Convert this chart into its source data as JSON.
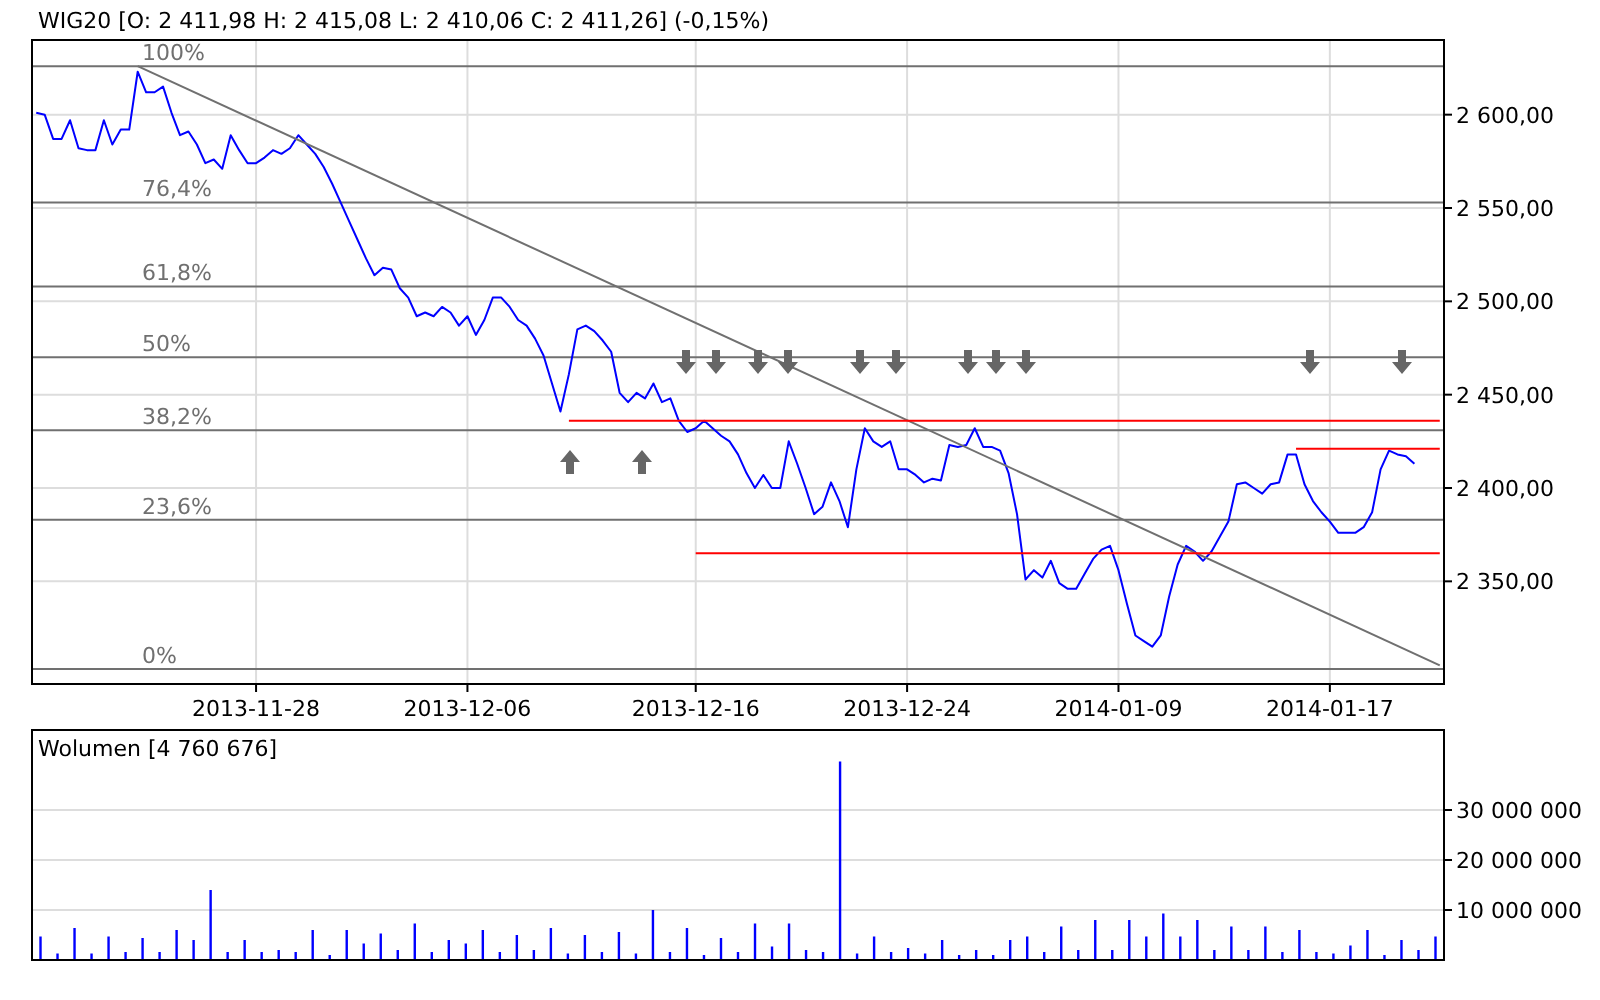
{
  "chart_data": [
    {
      "type": "line",
      "title": "WIG20 [O: 2 411,98 H: 2 415,08 L: 2 410,06 C: 2 411,26] (-0,15%)",
      "categories": [
        null,
        null,
        null,
        null,
        null,
        null,
        null,
        null,
        null,
        null,
        null,
        null,
        null,
        null,
        null,
        null,
        null,
        null,
        null,
        null,
        null,
        null,
        null,
        null,
        null,
        null,
        "2013-11-28",
        null,
        null,
        null,
        null,
        null,
        null,
        null,
        null,
        null,
        null,
        null,
        null,
        null,
        null,
        null,
        null,
        null,
        null,
        null,
        null,
        null,
        null,
        null,
        null,
        "2013-12-06",
        null,
        null,
        null,
        null,
        null,
        null,
        null,
        null,
        null,
        null,
        null,
        null,
        null,
        null,
        null,
        null,
        null,
        null,
        null,
        null,
        null,
        null,
        null,
        null,
        null,
        null,
        "2013-12-16",
        null,
        null,
        null,
        null,
        null,
        null,
        null,
        null,
        null,
        null,
        null,
        null,
        null,
        null,
        null,
        null,
        null,
        null,
        null,
        null,
        null,
        null,
        null,
        null,
        "2013-12-24",
        null,
        null,
        null,
        null,
        null,
        null,
        null,
        null,
        null,
        null,
        null,
        null,
        null,
        null,
        null,
        null,
        null,
        null,
        null,
        null,
        null,
        null,
        null,
        null,
        "2014-01-09",
        null,
        null,
        null,
        null,
        null,
        null,
        null,
        null,
        null,
        null,
        null,
        null,
        null,
        null,
        null,
        null,
        null,
        null,
        null,
        null,
        null,
        null,
        null,
        null,
        "2014-01-17",
        null,
        null,
        null,
        null,
        null,
        null,
        null,
        null,
        null,
        null,
        null,
        null,
        null
      ],
      "ylim": [
        2295,
        2640
      ],
      "yticks": [
        {
          "value": 2350,
          "label": "2 350,00"
        },
        {
          "value": 2400,
          "label": "2 400,00"
        },
        {
          "value": 2450,
          "label": "2 450,00"
        },
        {
          "value": 2500,
          "label": "2 500,00"
        },
        {
          "value": 2550,
          "label": "2 550,00"
        },
        {
          "value": 2600,
          "label": "2 600,00"
        }
      ],
      "grid": true,
      "marker": "none",
      "line_style": "solid",
      "ref_lines": [
        {
          "axis": "y",
          "value": 2626,
          "color": "#707070"
        },
        {
          "axis": "y",
          "value": 2553,
          "color": "#707070"
        },
        {
          "axis": "y",
          "value": 2508,
          "color": "#707070"
        },
        {
          "axis": "y",
          "value": 2470,
          "color": "#707070"
        },
        {
          "axis": "y",
          "value": 2431,
          "color": "#707070"
        },
        {
          "axis": "y",
          "value": 2383,
          "color": "#707070"
        },
        {
          "axis": "y",
          "value": 2303,
          "color": "#707070"
        }
      ],
      "annotations": [
        {
          "text": "100%",
          "y": 2626
        },
        {
          "text": "76,4%",
          "y": 2553
        },
        {
          "text": "61,8%",
          "y": 2508
        },
        {
          "text": "50%",
          "y": 2470
        },
        {
          "text": "38,2%",
          "y": 2431
        },
        {
          "text": "23,6%",
          "y": 2383
        },
        {
          "text": "0%",
          "y": 2303
        }
      ],
      "series": [
        {
          "color": "#0000ff",
          "values": [
            2601,
            2600,
            2587,
            2587,
            2597,
            2582,
            2581,
            2581,
            2597,
            2584,
            2592,
            2592,
            2623,
            2612,
            2612,
            2615,
            2601,
            2589,
            2591,
            2584,
            2574,
            2576,
            2571,
            2589,
            2581,
            2574,
            2574,
            2577,
            2581,
            2579,
            2582,
            2589,
            2584,
            2579,
            2572,
            2563,
            2553,
            2543,
            2533,
            2523,
            2514,
            2518,
            2517,
            2507,
            2502,
            2492,
            2494,
            2492,
            2497,
            2494,
            2487,
            2492,
            2482,
            2490,
            2502,
            2502,
            2497,
            2490,
            2487,
            2480,
            2471,
            2456,
            2441,
            2461,
            2485,
            2487,
            2484,
            2479,
            2473,
            2451,
            2446,
            2451,
            2448,
            2456,
            2446,
            2448,
            2436,
            2430,
            2432,
            2436,
            2432,
            2428,
            2425,
            2418,
            2408,
            2400,
            2407,
            2400,
            2400,
            2425,
            2413,
            2400,
            2386,
            2390,
            2403,
            2393,
            2379,
            2410,
            2432,
            2425,
            2422,
            2425,
            2410,
            2410,
            2407,
            2403,
            2405,
            2404,
            2423,
            2422,
            2423,
            2432,
            2422,
            2422,
            2420,
            2408,
            2386,
            2351,
            2356,
            2352,
            2361,
            2349,
            2346,
            2346,
            2354,
            2362,
            2367,
            2369,
            2356,
            2338,
            2321,
            2318,
            2315,
            2321,
            2342,
            2359,
            2369,
            2366,
            2361,
            2366,
            2374,
            2382,
            2402,
            2403,
            2400,
            2397,
            2402,
            2403,
            2418,
            2418,
            2402,
            2393,
            2387,
            2382,
            2376,
            2376,
            2376,
            2379,
            2387,
            2410,
            2420,
            2418,
            2417,
            2413,
            null,
            null,
            null
          ]
        },
        {
          "color": "#707070",
          "values": [
            null,
            null,
            null,
            null,
            null,
            null,
            null,
            null,
            null,
            null,
            null,
            null,
            2626,
            null,
            null,
            null,
            null,
            null,
            null,
            null,
            null,
            null,
            null,
            null,
            null,
            null,
            null,
            null,
            null,
            null,
            null,
            null,
            null,
            null,
            null,
            null,
            null,
            null,
            null,
            null,
            null,
            null,
            null,
            null,
            null,
            null,
            null,
            null,
            null,
            null,
            null,
            null,
            null,
            null,
            null,
            null,
            null,
            null,
            null,
            null,
            null,
            null,
            null,
            null,
            null,
            null,
            null,
            null,
            null,
            null,
            null,
            null,
            null,
            null,
            null,
            null,
            null,
            null,
            null,
            null,
            null,
            null,
            null,
            null,
            null,
            null,
            null,
            null,
            null,
            null,
            null,
            null,
            null,
            null,
            null,
            null,
            null,
            null,
            null,
            null,
            null,
            null,
            null,
            null,
            null,
            null,
            null,
            null,
            null,
            null,
            null,
            null,
            null,
            null,
            null,
            null,
            null,
            null,
            null,
            null,
            null,
            null,
            null,
            null,
            null,
            null,
            null,
            null,
            null,
            null,
            null,
            null,
            null,
            null,
            null,
            null,
            null,
            null,
            null,
            null,
            null,
            null,
            null,
            null,
            null,
            null,
            null,
            null,
            null,
            null,
            null,
            null,
            null,
            null,
            null,
            null,
            null,
            null,
            null,
            null,
            null,
            null,
            null,
            null,
            null,
            null,
            2305
          ]
        },
        {
          "color": "#ff0000",
          "values": [
            null,
            null,
            null,
            null,
            null,
            null,
            null,
            null,
            null,
            null,
            null,
            null,
            null,
            null,
            null,
            null,
            null,
            null,
            null,
            null,
            null,
            null,
            null,
            null,
            null,
            null,
            null,
            null,
            null,
            null,
            null,
            null,
            null,
            null,
            null,
            null,
            null,
            null,
            null,
            null,
            null,
            null,
            null,
            null,
            null,
            null,
            null,
            null,
            null,
            null,
            null,
            null,
            null,
            null,
            null,
            null,
            null,
            null,
            null,
            null,
            null,
            null,
            null,
            2436,
            null,
            null,
            null,
            null,
            null,
            null,
            null,
            null,
            null,
            null,
            null,
            null,
            null,
            null,
            null,
            null,
            null,
            null,
            null,
            null,
            null,
            null,
            null,
            null,
            null,
            null,
            null,
            null,
            null,
            null,
            null,
            null,
            null,
            null,
            null,
            null,
            null,
            null,
            null,
            null,
            null,
            null,
            null,
            null,
            null,
            null,
            null,
            null,
            null,
            null,
            null,
            null,
            null,
            null,
            null,
            null,
            null,
            null,
            null,
            null,
            null,
            null,
            null,
            null,
            null,
            null,
            null,
            null,
            null,
            null,
            null,
            null,
            null,
            null,
            null,
            null,
            null,
            null,
            null,
            null,
            null,
            null,
            null,
            null,
            null,
            null,
            null,
            null,
            null,
            null,
            null,
            null,
            null,
            null,
            null,
            null,
            null,
            null,
            null,
            null,
            null,
            null,
            2436
          ]
        },
        {
          "color": "#ff0000",
          "values": [
            null,
            null,
            null,
            null,
            null,
            null,
            null,
            null,
            null,
            null,
            null,
            null,
            null,
            null,
            null,
            null,
            null,
            null,
            null,
            null,
            null,
            null,
            null,
            null,
            null,
            null,
            null,
            null,
            null,
            null,
            null,
            null,
            null,
            null,
            null,
            null,
            null,
            null,
            null,
            null,
            null,
            null,
            null,
            null,
            null,
            null,
            null,
            null,
            null,
            null,
            null,
            null,
            null,
            null,
            null,
            null,
            null,
            null,
            null,
            null,
            null,
            null,
            null,
            null,
            null,
            null,
            null,
            null,
            null,
            null,
            null,
            null,
            null,
            null,
            null,
            null,
            null,
            null,
            2365,
            null,
            null,
            null,
            null,
            null,
            null,
            null,
            null,
            null,
            null,
            null,
            null,
            null,
            null,
            null,
            null,
            null,
            null,
            null,
            null,
            null,
            null,
            null,
            null,
            null,
            null,
            null,
            null,
            null,
            null,
            null,
            null,
            null,
            null,
            null,
            null,
            null,
            null,
            null,
            null,
            null,
            null,
            null,
            null,
            null,
            null,
            null,
            null,
            null,
            null,
            null,
            null,
            null,
            null,
            null,
            null,
            null,
            null,
            null,
            null,
            null,
            null,
            null,
            null,
            null,
            null,
            null,
            null,
            null,
            null,
            null,
            null,
            null,
            null,
            null,
            null,
            null,
            null,
            null,
            null,
            null,
            null,
            null,
            null,
            null,
            null,
            null,
            2365
          ]
        },
        {
          "color": "#ff0000",
          "values": [
            null,
            null,
            null,
            null,
            null,
            null,
            null,
            null,
            null,
            null,
            null,
            null,
            null,
            null,
            null,
            null,
            null,
            null,
            null,
            null,
            null,
            null,
            null,
            null,
            null,
            null,
            null,
            null,
            null,
            null,
            null,
            null,
            null,
            null,
            null,
            null,
            null,
            null,
            null,
            null,
            null,
            null,
            null,
            null,
            null,
            null,
            null,
            null,
            null,
            null,
            null,
            null,
            null,
            null,
            null,
            null,
            null,
            null,
            null,
            null,
            null,
            null,
            null,
            null,
            null,
            null,
            null,
            null,
            null,
            null,
            null,
            null,
            null,
            null,
            null,
            null,
            null,
            null,
            null,
            null,
            null,
            null,
            null,
            null,
            null,
            null,
            null,
            null,
            null,
            null,
            null,
            null,
            null,
            null,
            null,
            null,
            null,
            null,
            null,
            null,
            null,
            null,
            null,
            null,
            null,
            null,
            null,
            null,
            null,
            null,
            null,
            null,
            null,
            null,
            null,
            null,
            null,
            null,
            null,
            null,
            null,
            null,
            null,
            null,
            null,
            null,
            null,
            null,
            null,
            null,
            null,
            null,
            null,
            null,
            null,
            null,
            null,
            null,
            null,
            null,
            null,
            null,
            null,
            null,
            null,
            null,
            null,
            null,
            null,
            2421,
            null,
            null,
            null,
            null,
            null,
            null,
            null,
            null,
            null,
            null,
            null,
            null,
            null,
            null,
            null,
            null,
            2421
          ]
        }
      ]
    },
    {
      "type": "bar",
      "title": "Wolumen [4 760 676]",
      "categories": [
        null,
        null,
        null,
        null,
        null,
        null,
        null,
        null,
        null,
        null,
        null,
        null,
        null,
        null,
        null,
        null,
        null,
        null,
        null,
        null,
        null,
        null,
        null,
        null,
        null,
        null,
        null,
        null,
        null,
        null,
        null,
        null,
        null,
        null,
        null,
        null,
        null,
        null,
        null,
        null,
        null,
        null,
        null,
        null,
        null,
        null,
        null,
        null,
        null,
        null,
        null,
        null,
        null,
        null,
        null,
        null,
        null,
        null,
        null,
        null,
        null,
        null,
        null,
        null,
        null,
        null,
        null,
        null,
        null,
        null,
        null,
        null,
        null,
        null,
        null,
        null,
        null,
        null,
        null,
        null,
        null,
        null,
        null
      ],
      "ylim": [
        0,
        46000000
      ],
      "yticks": [
        {
          "value": 10000000,
          "label": "10 000 000"
        },
        {
          "value": 20000000,
          "label": "20 000 000"
        },
        {
          "value": 30000000,
          "label": "30 000 000"
        }
      ],
      "grid": "y",
      "tick_labels": "y",
      "color": "#0000ff",
      "values": [
        4700000,
        1300000,
        6400000,
        1300000,
        4700000,
        1600000,
        4400000,
        1600000,
        6000000,
        4000000,
        14000000,
        1600000,
        4000000,
        1600000,
        2000000,
        1600000,
        6000000,
        1000000,
        6000000,
        3300000,
        5300000,
        2000000,
        7300000,
        1600000,
        4000000,
        3300000,
        6000000,
        1600000,
        5000000,
        2000000,
        6400000,
        1300000,
        5000000,
        1600000,
        5600000,
        1300000,
        10000000,
        1600000,
        6400000,
        1000000,
        4400000,
        1600000,
        7300000,
        2700000,
        7300000,
        2000000,
        1600000,
        39700000,
        1300000,
        4700000,
        1600000,
        2400000,
        1300000,
        4000000,
        1000000,
        2000000,
        1000000,
        4000000,
        4700000,
        1600000,
        6700000,
        2000000,
        8000000,
        2000000,
        8000000,
        4700000,
        9300000,
        4700000,
        8000000,
        2000000,
        6700000,
        2000000,
        6700000,
        1600000,
        6000000,
        1600000,
        1300000,
        2900000,
        6000000,
        1000000,
        4000000,
        2000000,
        4700000
      ]
    }
  ]
}
